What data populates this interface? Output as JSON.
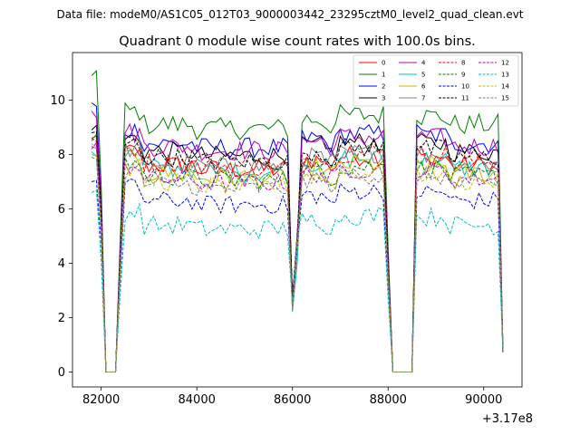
{
  "chart_data": {
    "type": "line",
    "suptitle": "Data file: modeM0/AS1C05_012T03_9000003442_23295cztM0_level2_quad_clean.evt",
    "title": "Quadrant 0 module wise count rates with 100.0s bins.",
    "xlabel": "",
    "ylabel": "",
    "x_offset_label": "+3.17e8",
    "xlim": [
      81400,
      90800
    ],
    "ylim": [
      -0.55,
      11.75
    ],
    "x_ticks": [
      82000,
      84000,
      86000,
      88000,
      90000
    ],
    "x_tick_labels": [
      "82000",
      "84000",
      "86000",
      "88000",
      "90000"
    ],
    "y_ticks": [
      0,
      2,
      4,
      6,
      8,
      10
    ],
    "y_tick_labels": [
      "0",
      "2",
      "4",
      "6",
      "8",
      "10"
    ],
    "legend_position": "top-right",
    "segments": [
      [
        81800,
        82000
      ],
      [
        82000,
        82400
      ],
      [
        82400,
        86000
      ],
      [
        86000,
        86200
      ],
      [
        86200,
        88000
      ],
      [
        88000,
        88700
      ],
      [
        88700,
        90400
      ]
    ],
    "series": [
      {
        "name": "0",
        "color": "#ff0000",
        "dash": "solid",
        "level": 7.6,
        "start": 8.6,
        "amp": 0.38
      },
      {
        "name": "1",
        "color": "#008000",
        "dash": "solid",
        "level": 9.1,
        "start": 10.9,
        "amp": 0.4
      },
      {
        "name": "2",
        "color": "#0000ff",
        "dash": "solid",
        "level": 8.4,
        "start": 9.9,
        "amp": 0.38
      },
      {
        "name": "3",
        "color": "#000000",
        "dash": "solid",
        "level": 8.1,
        "start": 8.9,
        "amp": 0.38
      },
      {
        "name": "4",
        "color": "#bf00bf",
        "dash": "solid",
        "level": 8.3,
        "start": 9.6,
        "amp": 0.38
      },
      {
        "name": "5",
        "color": "#00bfbf",
        "dash": "solid",
        "level": 7.5,
        "start": 8.1,
        "amp": 0.38
      },
      {
        "name": "6",
        "color": "#bfbf00",
        "dash": "solid",
        "level": 7.3,
        "start": 8.4,
        "amp": 0.38
      },
      {
        "name": "7",
        "color": "#808080",
        "dash": "solid",
        "level": 7.7,
        "start": 8.3,
        "amp": 0.36
      },
      {
        "name": "8",
        "color": "#ff0000",
        "dash": "dashed",
        "level": 7.7,
        "start": 8.6,
        "amp": 0.36
      },
      {
        "name": "9",
        "color": "#008000",
        "dash": "dashed",
        "level": 7.2,
        "start": 8.5,
        "amp": 0.36
      },
      {
        "name": "10",
        "color": "#0000ff",
        "dash": "dashed",
        "level": 6.3,
        "start": 7.0,
        "amp": 0.34
      },
      {
        "name": "11",
        "color": "#000000",
        "dash": "dashed",
        "level": 7.9,
        "start": 8.8,
        "amp": 0.36
      },
      {
        "name": "12",
        "color": "#bf00bf",
        "dash": "dashed",
        "level": 7.1,
        "start": 8.2,
        "amp": 0.34
      },
      {
        "name": "13",
        "color": "#00bfbf",
        "dash": "dashed",
        "level": 5.4,
        "start": 6.6,
        "amp": 0.36
      },
      {
        "name": "14",
        "color": "#bfbf00",
        "dash": "dashed",
        "level": 7.0,
        "start": 8.0,
        "amp": 0.34
      },
      {
        "name": "15",
        "color": "#808080",
        "dash": "dashed",
        "level": 6.9,
        "start": 7.9,
        "amp": 0.34
      }
    ]
  }
}
